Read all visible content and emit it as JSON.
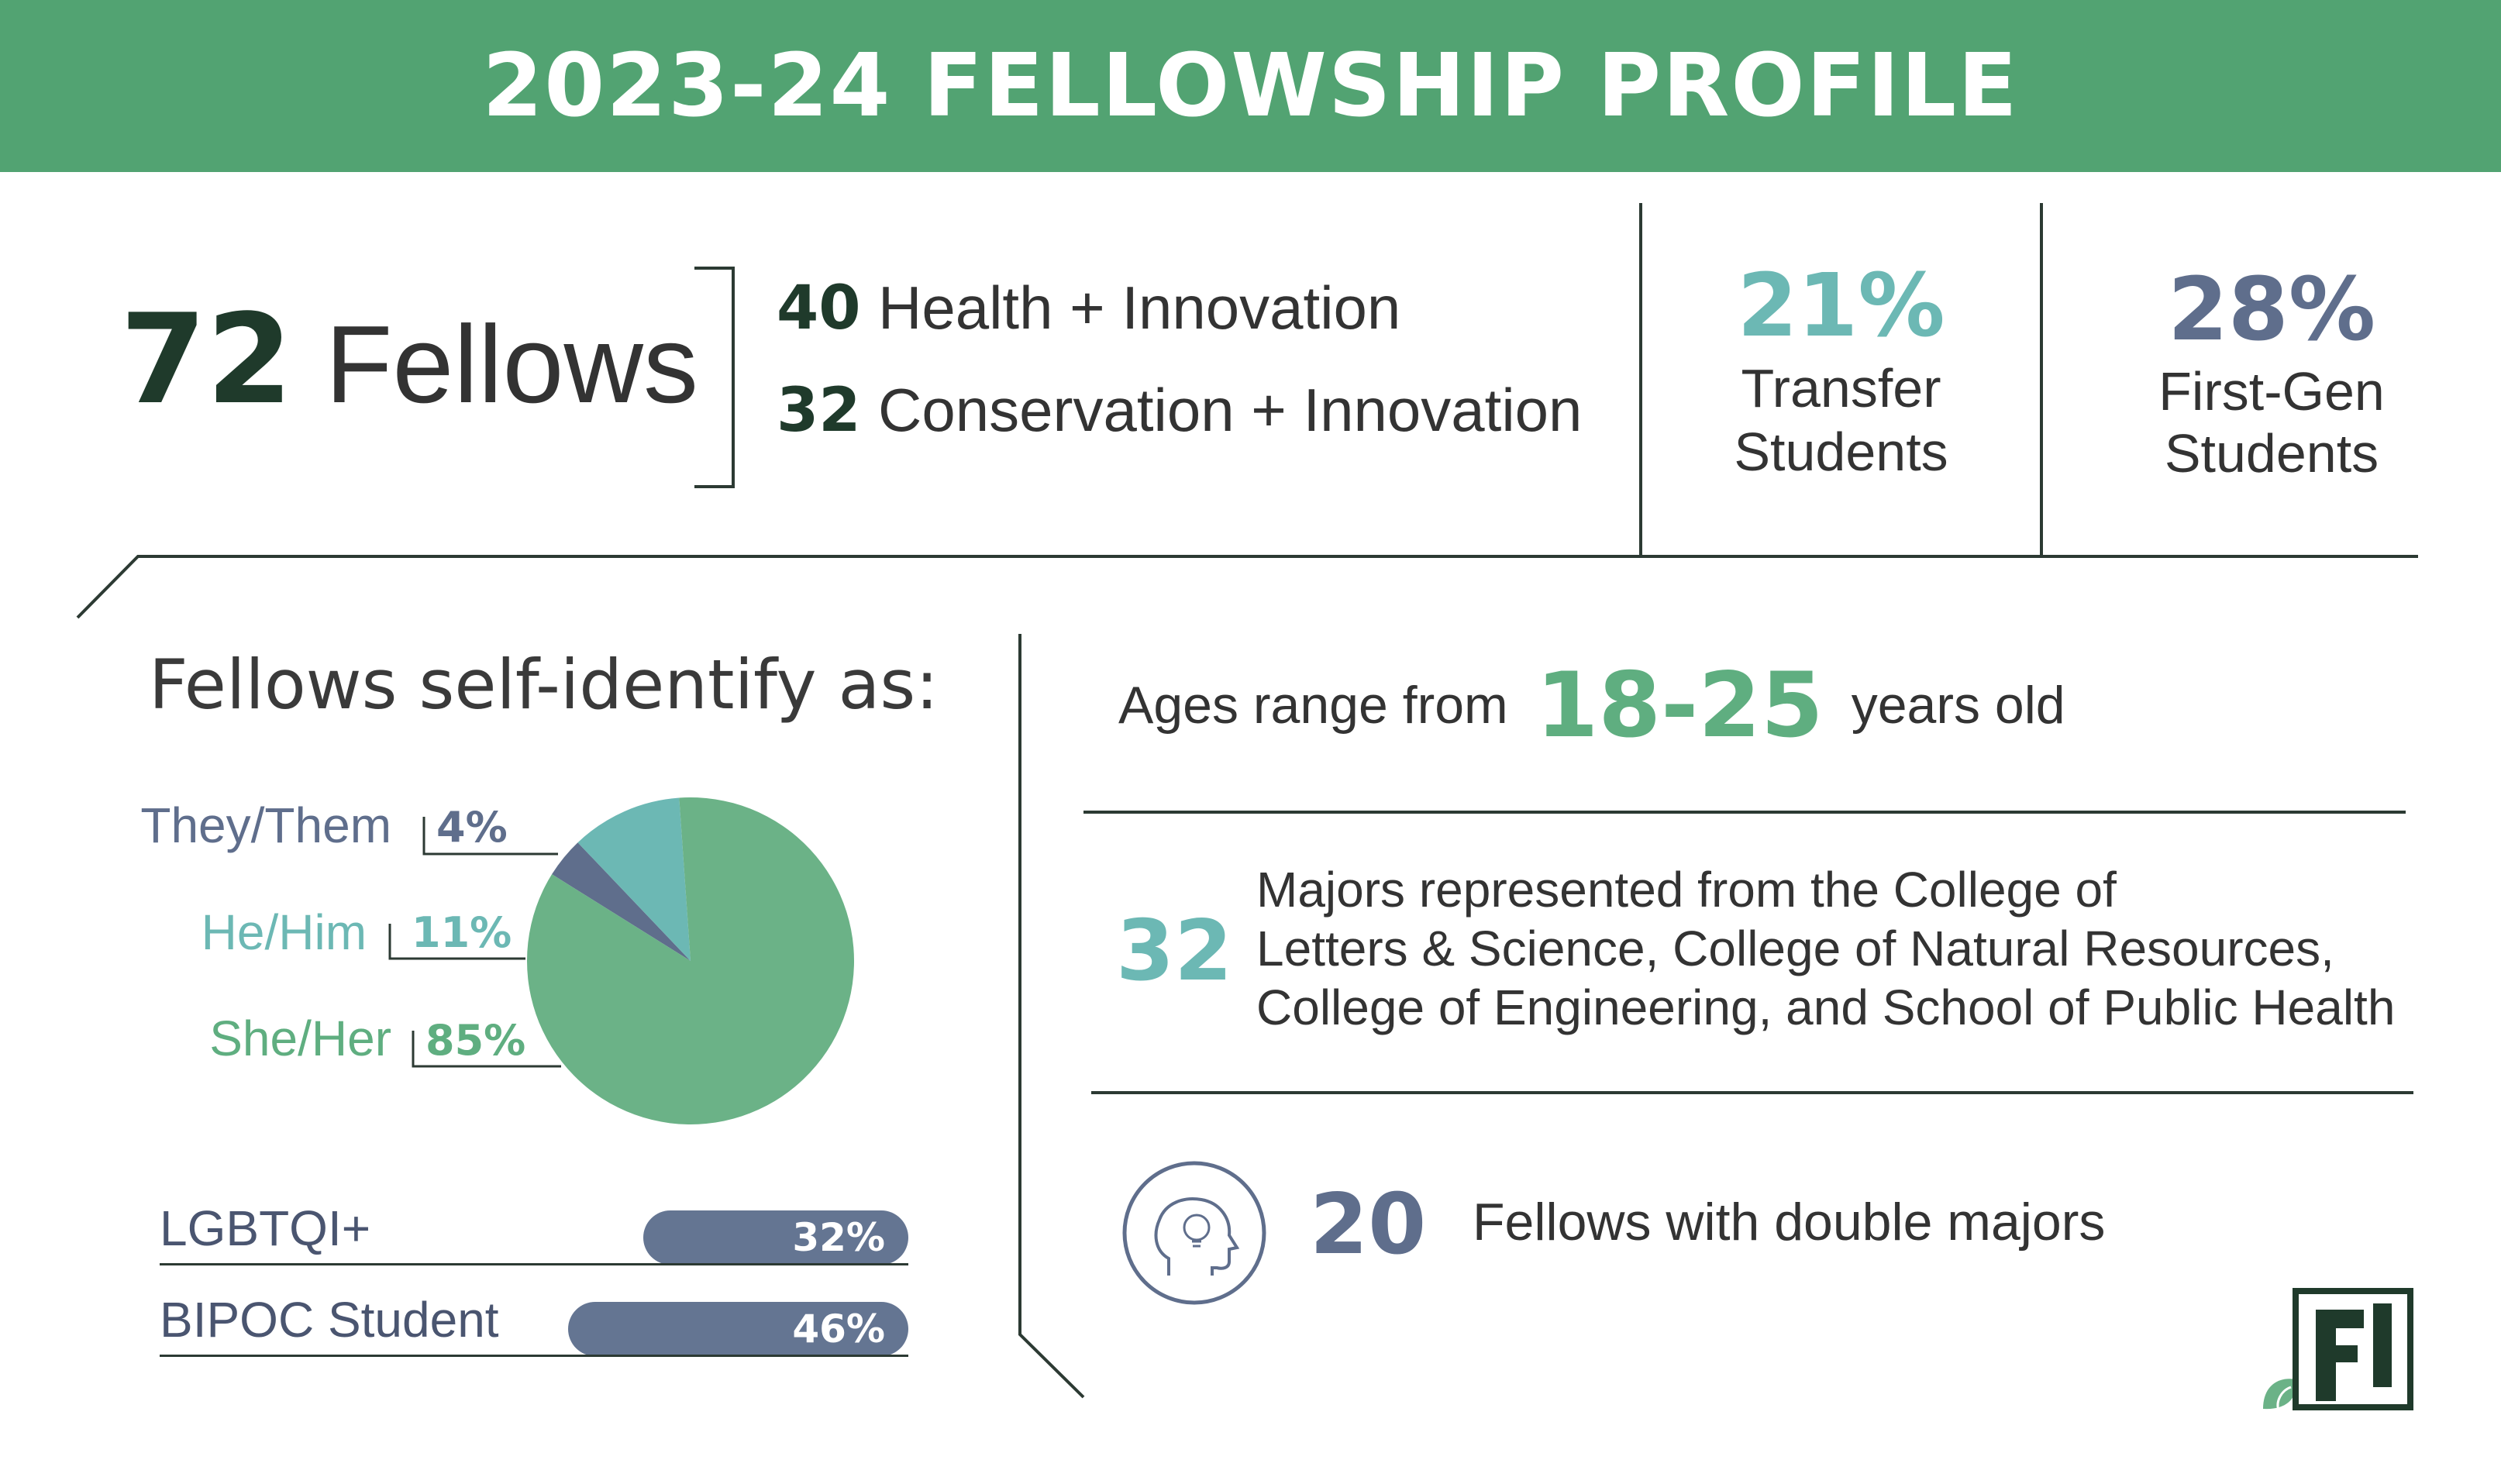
{
  "header": {
    "title": "2023-24 FELLOWSHIP PROFILE"
  },
  "summary": {
    "total_num": "72",
    "total_label": "Fellows",
    "tracks": [
      {
        "num": "40",
        "label": "Health + Innovation"
      },
      {
        "num": "32",
        "label": "Conservation + Innovation"
      }
    ],
    "transfer": {
      "pct": "21%",
      "line1": "Transfer",
      "line2": "Students"
    },
    "firstgen": {
      "pct": "28%",
      "line1": "First-Gen",
      "line2": "Students"
    }
  },
  "identity": {
    "heading": "Fellows self-identify as:",
    "pronouns": [
      {
        "label": "They/Them",
        "pct": "4%",
        "value": 4,
        "color": "#5f6e8c"
      },
      {
        "label": "He/Him",
        "pct": "11%",
        "value": 11,
        "color": "#6cb8b4"
      },
      {
        "label": "She/Her",
        "pct": "85%",
        "value": 85,
        "color": "#6bb287"
      }
    ],
    "bars": [
      {
        "label": "LGBTQI+",
        "pct": "32%",
        "value": 32
      },
      {
        "label": "BIPOC Student",
        "pct": "46%",
        "value": 46
      }
    ]
  },
  "ages": {
    "prefix": "Ages range from",
    "range": "18-25",
    "suffix": "years old"
  },
  "majors": {
    "num": "32",
    "line1": "Majors represented from the College of",
    "line2": "Letters & Science, College of Natural Resources,",
    "line3": "College of Engineering, and School of Public Health"
  },
  "double": {
    "num": "20",
    "label": "Fellows with double majors",
    "icon": "head-lightbulb-icon"
  },
  "logo": {
    "icon": "fellowship-logo"
  },
  "colors": {
    "header": "#52a372",
    "green": "#5fae80",
    "teal": "#6cb8b4",
    "slate": "#5f6e8c",
    "dark": "#1f3a2b"
  }
}
